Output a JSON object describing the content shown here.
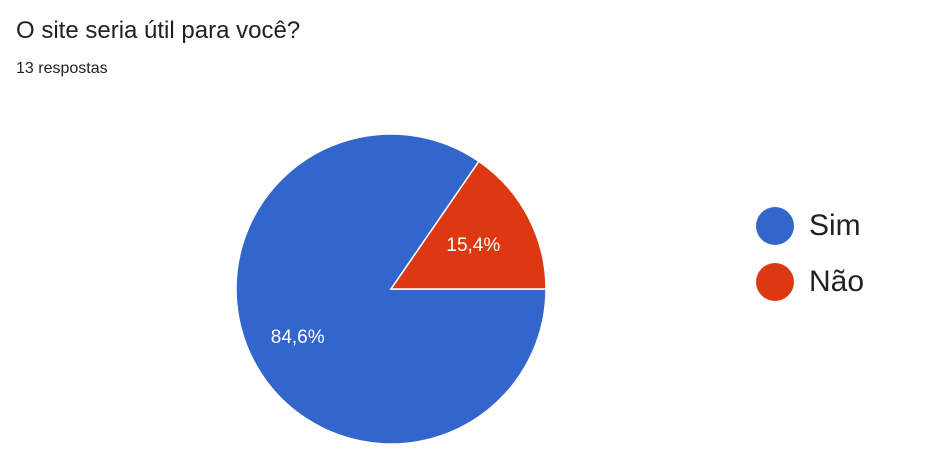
{
  "question": {
    "title": "O site seria útil para você?",
    "responses_label": "13 respostas"
  },
  "colors": {
    "series": [
      "#3366cc",
      "#dc3912"
    ],
    "slice_label_text": "#ffffff",
    "slice_border": "#ffffff"
  },
  "chart_data": {
    "type": "pie",
    "title": "O site seria útil para você?",
    "subtitle": "13 respostas",
    "categories": [
      "Sim",
      "Não"
    ],
    "values": [
      84.6,
      15.4
    ],
    "counts": [
      11,
      2
    ],
    "value_labels": [
      "84,6%",
      "15,4%"
    ],
    "legend": {
      "placement": "right",
      "entries": [
        "Sim",
        "Não"
      ]
    }
  }
}
